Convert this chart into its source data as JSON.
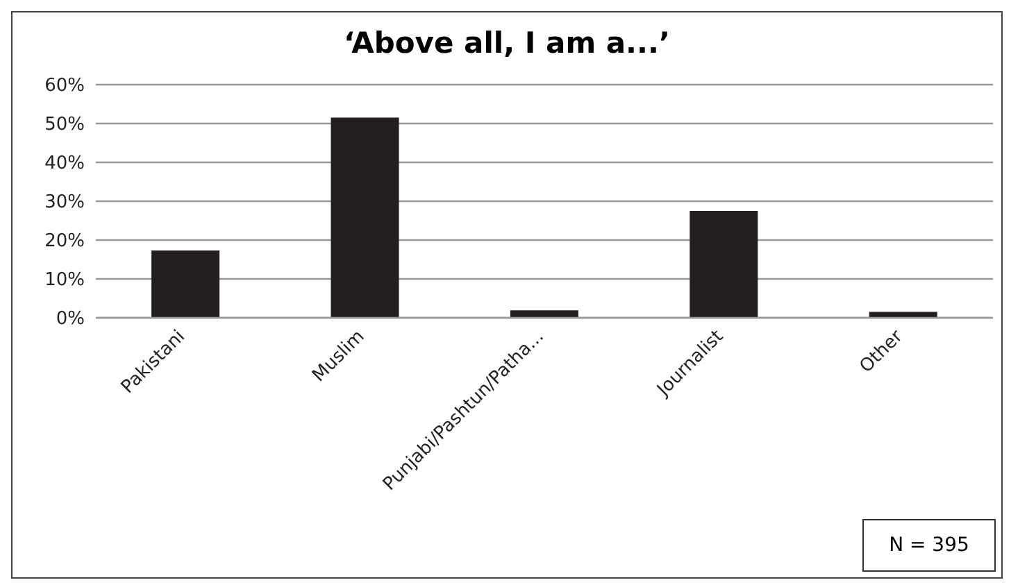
{
  "chart_data": {
    "type": "bar",
    "title": "‘Above all, I am a...’",
    "categories": [
      "Pakistani",
      "Muslim",
      "Punjabi/Pashtun/Patha...",
      "Journalist",
      "Other"
    ],
    "values": [
      17.3,
      51.5,
      1.9,
      27.5,
      1.5
    ],
    "color": "#231f20",
    "ylim": [
      0,
      60
    ],
    "yticks": [
      {
        "value": 0,
        "label": "0%"
      },
      {
        "value": 10,
        "label": "10%"
      },
      {
        "value": 20,
        "label": "20%"
      },
      {
        "value": 30,
        "label": "30%"
      },
      {
        "value": 40,
        "label": "40%"
      },
      {
        "value": 50,
        "label": "50%"
      },
      {
        "value": 60,
        "label": "60%"
      }
    ],
    "grid": "y",
    "annotations": [
      "N = 395"
    ]
  }
}
